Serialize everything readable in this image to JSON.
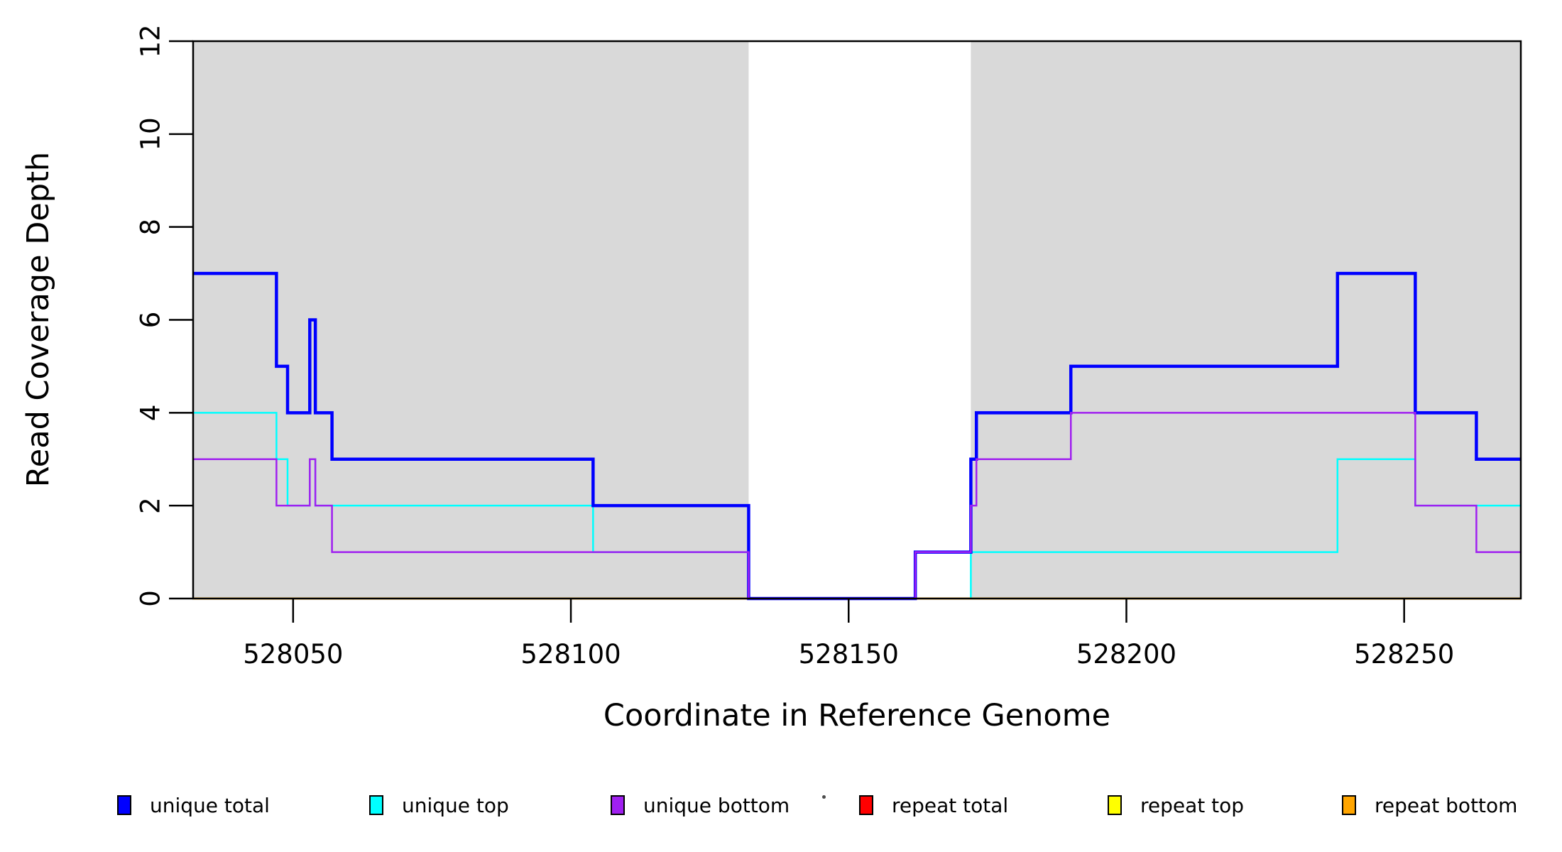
{
  "axes": {
    "xlabel": "Coordinate in Reference Genome",
    "ylabel": "Read Coverage Depth",
    "x_tick_labels": [
      "528050",
      "528100",
      "528150",
      "528200",
      "528250"
    ],
    "y_tick_labels": [
      "0",
      "2",
      "4",
      "6",
      "8",
      "10",
      "12"
    ]
  },
  "chart_data": {
    "type": "line",
    "subtype": "step-coverage",
    "title": "",
    "xlabel": "Coordinate in Reference Genome",
    "ylabel": "Read Coverage Depth",
    "xlim": [
      528032,
      528271
    ],
    "ylim": [
      0,
      12
    ],
    "x_ticks": [
      528050,
      528100,
      528150,
      528200,
      528250
    ],
    "y_ticks": [
      0,
      2,
      4,
      6,
      8,
      10,
      12
    ],
    "grid": false,
    "background_color": "#ffffff",
    "shaded_band_color": "#d9d9d9",
    "shaded_regions": [
      {
        "x0": 528032,
        "x1": 528132
      },
      {
        "x0": 528172,
        "x1": 528271
      }
    ],
    "series": [
      {
        "name": "repeat total",
        "color": "#ff0000",
        "lw": 2.5,
        "steps": [
          [
            528032,
            0
          ],
          [
            528271,
            0
          ]
        ]
      },
      {
        "name": "repeat top",
        "color": "#ffff00",
        "lw": 2.5,
        "steps": [
          [
            528032,
            0
          ],
          [
            528271,
            0
          ]
        ]
      },
      {
        "name": "unique top",
        "color": "#00ffff",
        "lw": 2.5,
        "steps": [
          [
            528032,
            4
          ],
          [
            528047,
            3
          ],
          [
            528049,
            2
          ],
          [
            528053,
            3
          ],
          [
            528054,
            2
          ],
          [
            528104,
            1
          ],
          [
            528132,
            0
          ],
          [
            528172,
            1
          ],
          [
            528238,
            3
          ],
          [
            528252,
            2
          ],
          [
            528271,
            2
          ]
        ]
      },
      {
        "name": "repeat bottom",
        "color": "#ffa500",
        "lw": 3,
        "steps": [
          [
            528032,
            0
          ],
          [
            528271,
            0
          ]
        ]
      },
      {
        "name": "unique total",
        "color": "#0000ff",
        "lw": 4.5,
        "steps": [
          [
            528032,
            7
          ],
          [
            528047,
            5
          ],
          [
            528049,
            4
          ],
          [
            528053,
            6
          ],
          [
            528054,
            4
          ],
          [
            528057,
            3
          ],
          [
            528104,
            2
          ],
          [
            528132,
            0
          ],
          [
            528162,
            1
          ],
          [
            528172,
            3
          ],
          [
            528173,
            4
          ],
          [
            528190,
            5
          ],
          [
            528238,
            7
          ],
          [
            528252,
            4
          ],
          [
            528263,
            3
          ],
          [
            528271,
            3
          ]
        ]
      },
      {
        "name": "unique bottom",
        "color": "#a020f0",
        "lw": 2.5,
        "steps": [
          [
            528032,
            3
          ],
          [
            528047,
            2
          ],
          [
            528053,
            3
          ],
          [
            528054,
            2
          ],
          [
            528057,
            1
          ],
          [
            528132,
            0
          ],
          [
            528162,
            1
          ],
          [
            528172,
            2
          ],
          [
            528173,
            3
          ],
          [
            528190,
            4
          ],
          [
            528252,
            2
          ],
          [
            528263,
            1
          ],
          [
            528271,
            1
          ]
        ]
      }
    ],
    "legend_position": "bottom-horizontal"
  },
  "legend": {
    "entries": [
      {
        "label": "unique total",
        "color": "#0000ff"
      },
      {
        "label": "unique top",
        "color": "#00ffff"
      },
      {
        "label": "unique bottom",
        "color": "#a020f0"
      },
      {
        "label": "repeat total",
        "color": "#ff0000"
      },
      {
        "label": "repeat top",
        "color": "#ffff00"
      },
      {
        "label": "repeat bottom",
        "color": "#ffa500"
      }
    ]
  }
}
